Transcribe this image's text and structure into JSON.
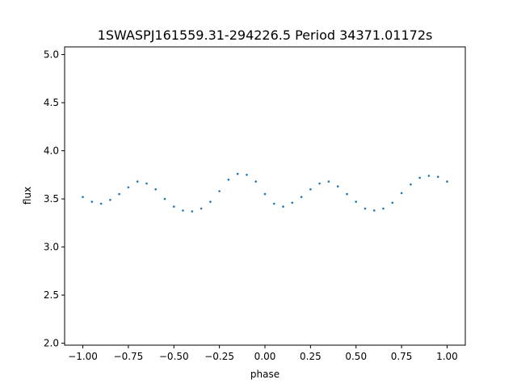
{
  "chart_data": {
    "type": "scatter",
    "title": "1SWASPJ161559.31-294226.5 Period 34371.01172s",
    "xlabel": "phase",
    "ylabel": "flux",
    "xlim": [
      -1.1,
      1.1
    ],
    "ylim": [
      1.98,
      5.08
    ],
    "x_ticks": [
      -1.0,
      -0.75,
      -0.5,
      -0.25,
      0.0,
      0.25,
      0.5,
      0.75,
      1.0
    ],
    "x_tick_labels": [
      "−1.00",
      "−0.75",
      "−0.50",
      "−0.25",
      "0.00",
      "0.25",
      "0.50",
      "0.75",
      "1.00"
    ],
    "y_ticks": [
      2.0,
      2.5,
      3.0,
      3.5,
      4.0,
      4.5,
      5.0
    ],
    "y_tick_labels": [
      "2.0",
      "2.5",
      "3.0",
      "3.5",
      "4.0",
      "4.5",
      "5.0"
    ],
    "marker_color": "#1f77b4",
    "grid": false,
    "legend": "none",
    "series": [
      {
        "x": [
          -1.0,
          -0.95,
          -0.9,
          -0.85,
          -0.8,
          -0.75,
          -0.7,
          -0.65,
          -0.6,
          -0.55,
          -0.5,
          -0.45,
          -0.4,
          -0.35,
          -0.3,
          -0.25,
          -0.2,
          -0.15,
          -0.1,
          -0.05,
          0.0,
          0.05,
          0.1,
          0.15,
          0.2,
          0.25,
          0.3,
          0.35,
          0.4,
          0.45,
          0.5,
          0.55,
          0.6,
          0.65,
          0.7,
          0.75,
          0.8,
          0.85,
          0.9,
          0.95,
          1.0
        ],
        "y": [
          3.52,
          3.47,
          3.45,
          3.49,
          3.55,
          3.62,
          3.68,
          3.66,
          3.6,
          3.5,
          3.42,
          3.38,
          3.37,
          3.4,
          3.47,
          3.58,
          3.7,
          3.76,
          3.75,
          3.68,
          3.55,
          3.45,
          3.42,
          3.46,
          3.52,
          3.6,
          3.66,
          3.68,
          3.63,
          3.55,
          3.47,
          3.4,
          3.38,
          3.4,
          3.46,
          3.56,
          3.65,
          3.72,
          3.74,
          3.73,
          3.68
        ]
      }
    ]
  }
}
